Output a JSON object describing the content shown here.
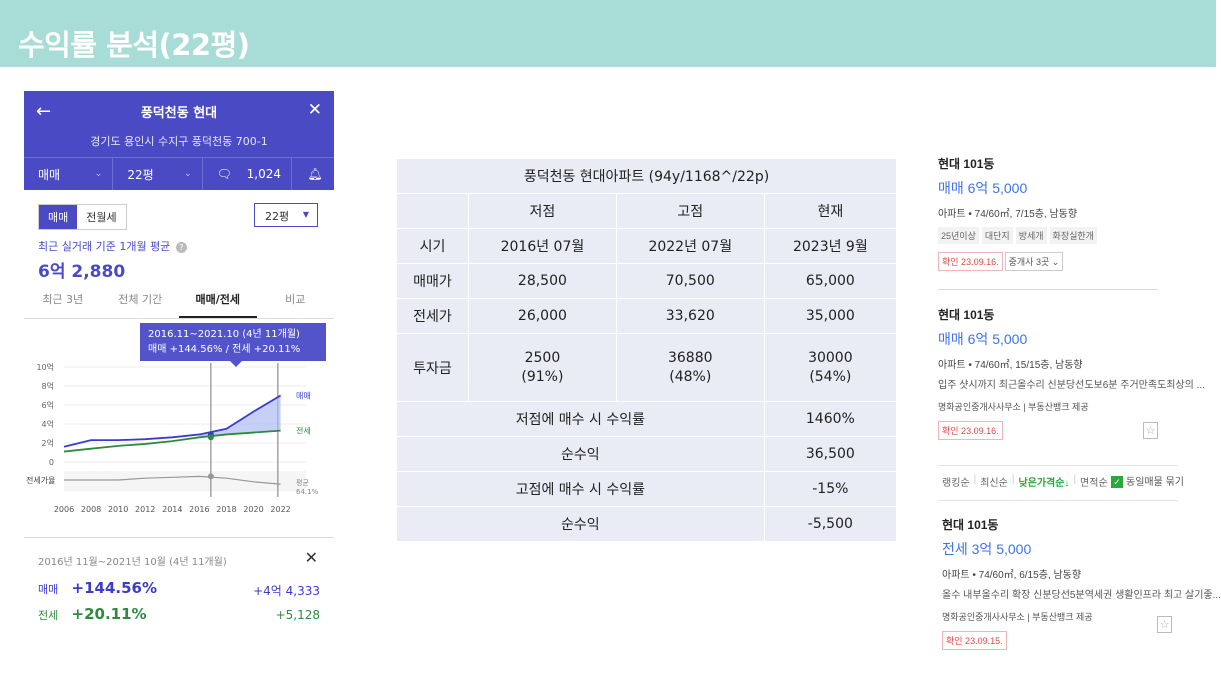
{
  "title": "수익률 분석(22평)",
  "phone": {
    "back": "←",
    "name": "풍덕천동 현대",
    "close": "✕",
    "address": "경기도 용인시 수지구 풍덕천동 700-1",
    "filter_type": "매매",
    "filter_size": "22평",
    "comments": "1,024",
    "seg_sale": "매매",
    "seg_rent": "전월세",
    "size_select": "22평",
    "avg_label": "최근 실거래 기준 1개월 평균",
    "avg_value": "6억 2,880",
    "tabs": [
      "최근 3년",
      "전체 기간",
      "매매/전세",
      "비교"
    ],
    "tooltip_range": "2016.11~2021.10 (4년 11개월)",
    "tooltip_values": "매매 +144.56%  /  전세 +20.11%",
    "summary_period": "2016년 11월~2021년 10월 (4년 11개월)",
    "sale_label": "매매",
    "sale_pct": "+144.56%",
    "sale_amt": "+4억 4,333",
    "rent_label": "전세",
    "rent_pct": "+20.11%",
    "rent_amt": "+5,128"
  },
  "chart_data": {
    "type": "line",
    "x": [
      2006,
      2008,
      2010,
      2012,
      2014,
      2016,
      2018,
      2020,
      2022
    ],
    "y_ticks": [
      "10억",
      "8억",
      "6억",
      "4억",
      "2억",
      "0"
    ],
    "ratio_label": "전세가율",
    "x_ticks": [
      "2006",
      "2008",
      "2010",
      "2012",
      "2014",
      "2016",
      "2018",
      "2020",
      "2022"
    ],
    "series": [
      {
        "name": "매매",
        "color": "#3b3bd0",
        "values": [
          1.6,
          2.3,
          2.3,
          2.4,
          2.6,
          2.9,
          3.5,
          5.3,
          7.0
        ]
      },
      {
        "name": "전세",
        "color": "#2e8b3e",
        "values": [
          1.1,
          1.4,
          1.7,
          1.9,
          2.2,
          2.6,
          2.9,
          3.1,
          3.3
        ]
      },
      {
        "name": "평균",
        "color": "#999999",
        "values": [
          0.7,
          0.7,
          0.7,
          0.8,
          0.85,
          0.9,
          0.8,
          0.6,
          0.47
        ]
      }
    ],
    "avg_label": "평균",
    "avg_value": "64.1%",
    "ylim": [
      0,
      10
    ]
  },
  "table": {
    "title": "풍덕천동 현대아파트 (94y/1168^/22p)",
    "headers": [
      "저점",
      "고점",
      "현재"
    ],
    "rows": [
      {
        "label": "시기",
        "values": [
          "2016년 07월",
          "2022년 07월",
          "2023년 9월"
        ]
      },
      {
        "label": "매매가",
        "values": [
          "28,500",
          "70,500",
          "65,000"
        ]
      },
      {
        "label": "전세가",
        "values": [
          "26,000",
          "33,620",
          "35,000"
        ]
      },
      {
        "label": "투자금",
        "values": [
          "2500\n(91%)",
          "36880\n(48%)",
          "30000\n(54%)"
        ]
      }
    ],
    "summary": [
      {
        "label": "저점에 매수 시 수익률",
        "value": "1460%"
      },
      {
        "label": "순수익",
        "value": "36,500"
      },
      {
        "label": "고점에 매수 시 수익률",
        "value": "-15%"
      },
      {
        "label": "순수익",
        "value": "-5,500"
      }
    ]
  },
  "listings": [
    {
      "name": "현대 101동",
      "price": "매매 6억 5,000",
      "info": "아파트 • 74/60㎡, 7/15층, 남동향",
      "tags": [
        "25년이상",
        "대단지",
        "방세개",
        "화장실한개"
      ],
      "date": "확인 23.09.16.",
      "dealers": "중개사 3곳 ⌄"
    },
    {
      "name": "현대 101동",
      "price": "매매 6억 5,000",
      "info": "아파트 • 74/60㎡, 15/15층, 남동향",
      "desc": "입주 샷시까지 최근올수리 신분당선도보6분 주거만족도최상의 ...",
      "agency": "명화공인중개사사무소  |  부동산뱅크 제공",
      "date": "확인 23.09.16."
    },
    {
      "name": "현대 101동",
      "price": "전세 3억 5,000",
      "info": "아파트 • 74/60㎡, 6/15층, 남동향",
      "desc": "올수 내부올수리 확장 신분당선5분역세권 생활인프라 최고 살기좋...",
      "agency": "명화공인중개사사무소  |  부동산뱅크 제공",
      "date": "확인 23.09.15."
    }
  ],
  "sort": {
    "items": [
      "랭킹순",
      "최신순",
      "낮은가격순↓",
      "면적순"
    ],
    "checkbox": "동일매물 묶기"
  }
}
